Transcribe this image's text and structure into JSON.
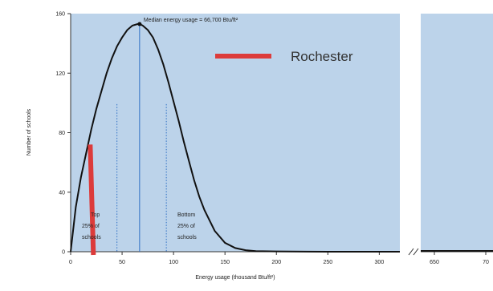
{
  "chart_data": {
    "type": "line",
    "title": "",
    "xlabel": "Energy usage (thousand Btu/ft²)",
    "ylabel": "Number of schools",
    "xlim": [
      0,
      320
    ],
    "ylim": [
      0,
      160
    ],
    "x_ticks": [
      0,
      50,
      100,
      150,
      200,
      250,
      300
    ],
    "y_ticks": [
      0,
      40,
      80,
      120,
      160
    ],
    "broken_axis_ticks": [
      "650",
      "70"
    ],
    "grid": false,
    "background_color": "#bcd3ea",
    "curve_color": "#111111",
    "series": [
      {
        "x": [
          0,
          5,
          10,
          15,
          20,
          25,
          30,
          35,
          40,
          45,
          50,
          55,
          60,
          65,
          67,
          70,
          75,
          80,
          85,
          90,
          95,
          100,
          105,
          110,
          115,
          120,
          125,
          130,
          140,
          150,
          160,
          170,
          180,
          200,
          250,
          300,
          320
        ],
        "y": [
          0,
          30,
          50,
          66,
          82,
          96,
          108,
          120,
          130,
          138,
          144,
          149,
          152,
          153,
          153,
          152,
          149,
          144,
          136,
          126,
          114,
          101,
          88,
          74,
          61,
          48,
          37,
          28,
          14,
          6,
          2.5,
          1,
          0.4,
          0.2,
          0,
          0,
          0
        ]
      }
    ],
    "median": {
      "x": 67,
      "y": 153,
      "label": "Median energy usage = 66,700 Btu/ft²"
    },
    "quartile_lines": [
      {
        "x": 45,
        "style": "dotted",
        "color": "#2e6fc4"
      },
      {
        "x": 93,
        "style": "dotted",
        "color": "#2e6fc4"
      }
    ],
    "annotations": [
      {
        "lines": [
          "Top",
          "25% of",
          "schools"
        ]
      },
      {
        "lines": [
          "Bottom",
          "25% of",
          "schools"
        ]
      }
    ],
    "highlight": {
      "label": "Rochester",
      "x": 19,
      "y_range": [
        0,
        72
      ],
      "color": "#dc3b3b"
    }
  }
}
